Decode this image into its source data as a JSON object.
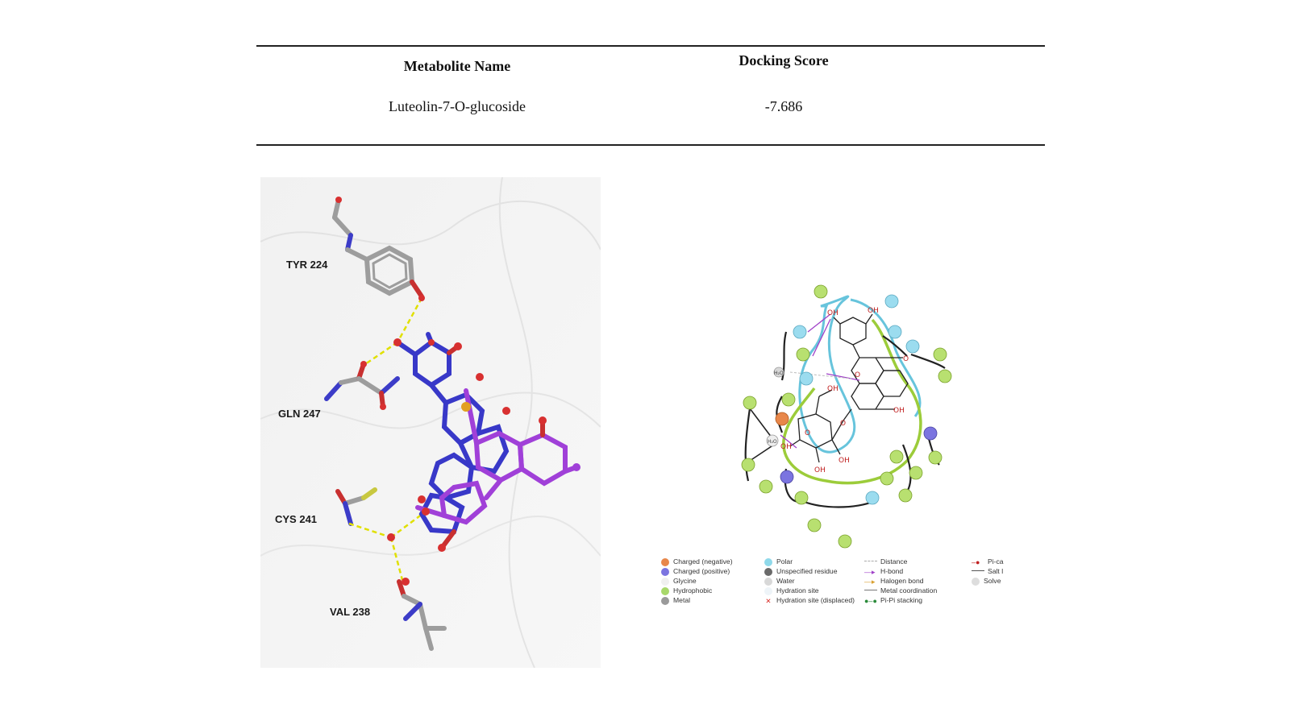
{
  "table": {
    "headers": [
      "Metabolite Name",
      "Docking Score"
    ],
    "rows": [
      [
        "Luteolin-7-O-glucoside",
        "-7.686"
      ]
    ]
  },
  "pose_3d": {
    "residues": [
      "TYR 224",
      "GLN 247",
      "CYS 241",
      "VAL 238"
    ]
  },
  "interaction_2d": {
    "substituents": [
      "OH",
      "OH",
      "O",
      "OH",
      "OH",
      "O",
      "OH",
      "OH",
      "O",
      "O",
      "OH"
    ],
    "water": [
      "H₂O",
      "H₂O"
    ],
    "legend": [
      {
        "label": "Charged (negative)",
        "color": "#e8874a"
      },
      {
        "label": "Charged (positive)",
        "color": "#7b74e0"
      },
      {
        "label": "Glycine",
        "color": "#f0f0f0"
      },
      {
        "label": "Hydrophobic",
        "color": "#a8d86a"
      },
      {
        "label": "Metal",
        "color": "#9a9a9a"
      },
      {
        "label": "Polar",
        "color": "#8fd9ea"
      },
      {
        "label": "Unspecified residue",
        "color": "#6a6a6a"
      },
      {
        "label": "Water",
        "color": "#d8d8d8"
      },
      {
        "label": "Hydration site",
        "color": "#eef4f8"
      },
      {
        "label": "Hydration site (displaced)",
        "color": "#d9302a"
      },
      {
        "label": "Distance",
        "color": "#aaaaaa"
      },
      {
        "label": "H-bond",
        "color": "#a040c8"
      },
      {
        "label": "Halogen bond",
        "color": "#d9a030"
      },
      {
        "label": "Metal coordination",
        "color": "#777777"
      },
      {
        "label": "Pi-Pi stacking",
        "color": "#2a8a3a"
      },
      {
        "label": "Pi-ca",
        "color": "#c02020"
      },
      {
        "label": "Salt l",
        "color": "#555555"
      },
      {
        "label": "Solve",
        "color": "#dddddd"
      }
    ]
  }
}
